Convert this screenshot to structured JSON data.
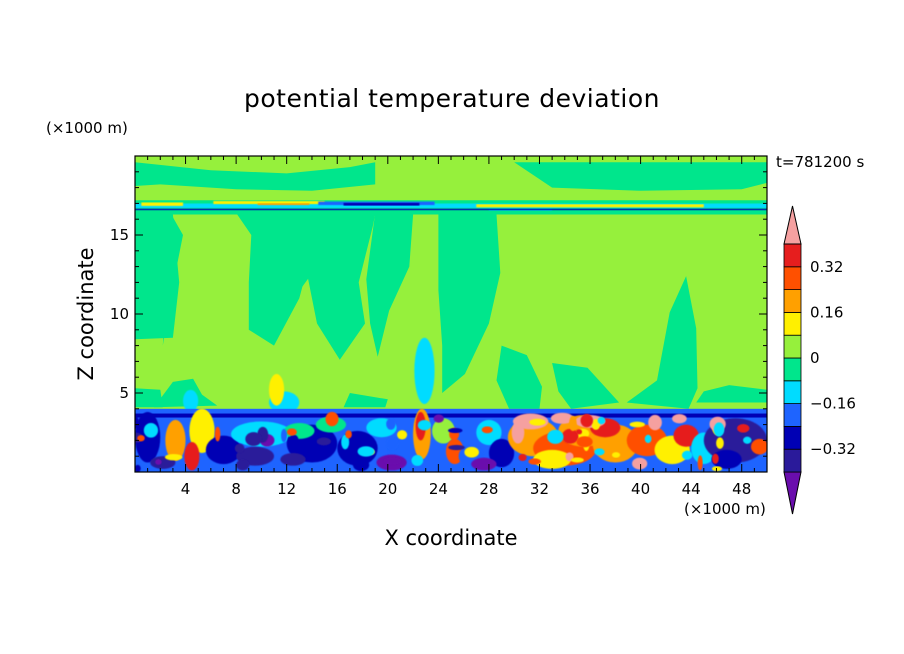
{
  "chart_data": {
    "type": "heatmap",
    "title": "potential temperature deviation",
    "xlabel": "X coordinate",
    "ylabel": "Z coordinate",
    "x_unit_label": "(×1000 m)",
    "y_unit_label": "(×1000 m)",
    "time_label": "t=781200 s",
    "xlim": [
      0,
      50
    ],
    "ylim": [
      0,
      20
    ],
    "x_ticks": [
      4,
      8,
      12,
      16,
      20,
      24,
      28,
      32,
      36,
      40,
      44,
      48
    ],
    "y_ticks": [
      5,
      10,
      15
    ],
    "colorbar": {
      "levels": [
        -0.4,
        -0.32,
        -0.24,
        -0.16,
        -0.08,
        0,
        0.08,
        0.16,
        0.24,
        0.32,
        0.4
      ],
      "tick_labels": [
        "0.32",
        "0.16",
        "0",
        "−0.16",
        "−0.32"
      ],
      "tick_values": [
        0.32,
        0.16,
        0,
        -0.16,
        -0.32
      ],
      "colors": [
        "#6a0dad",
        "#2a1a9a",
        "#0000b4",
        "#1e64ff",
        "#00dcff",
        "#00e68c",
        "#96f03c",
        "#fff000",
        "#ffa000",
        "#ff5000",
        "#e61e1e",
        "#f5a0a0"
      ]
    },
    "colors": {
      "background_field": "#96f03c",
      "slightly_negative": "#00e68c"
    }
  }
}
